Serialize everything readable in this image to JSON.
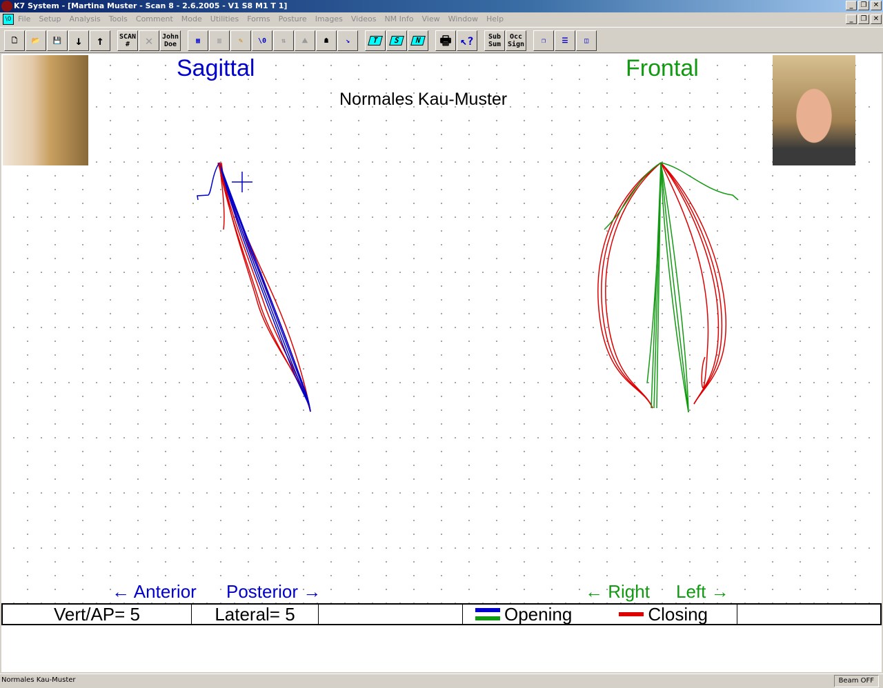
{
  "window": {
    "title": "K7 System - [Martina Muster - Scan 8 - 2.6.2005 - V1 S8    M1  T 1]",
    "doc_icon": "\\0"
  },
  "menu": [
    "File",
    "Setup",
    "Analysis",
    "Tools",
    "Comment",
    "Mode",
    "Utilities",
    "Forms",
    "Posture",
    "Images",
    "Videos",
    "NM Info",
    "View",
    "Window",
    "Help"
  ],
  "toolbar": {
    "scan": "SCAN #",
    "john": "John Doe",
    "t": "T",
    "s": "S",
    "n": "N",
    "subsum": "Sub Sum",
    "occsign": "Occ Sign"
  },
  "plot": {
    "title": "Normales Kau-Muster",
    "sagittal": "Sagittal",
    "frontal": "Frontal",
    "anterior": "← Anterior",
    "posterior": "Posterior →",
    "right": "← Right",
    "left": "Left →",
    "colors": {
      "sagittal": "#0000cc",
      "frontal": "#119911",
      "opening_blue": "#0000cc",
      "opening_green": "#119911",
      "closing": "#dd0000"
    }
  },
  "legend": {
    "vert": "Vert/AP= 5",
    "lateral": "Lateral= 5",
    "opening": "Opening",
    "closing": "Closing"
  },
  "status": {
    "text": "Normales Kau-Muster",
    "beam": "Beam OFF"
  }
}
